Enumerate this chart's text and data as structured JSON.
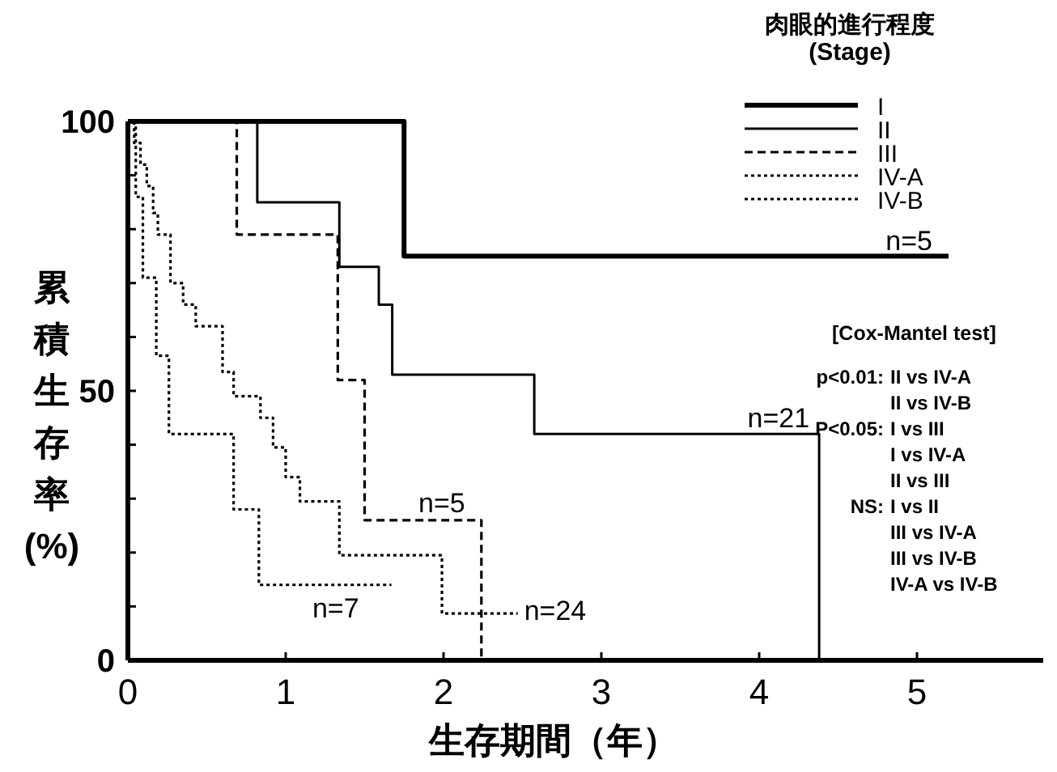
{
  "chart_data": {
    "type": "step",
    "xlabel": "生存期間（年）",
    "ylabel": "累積生存率(%)",
    "legend_title": "肉眼的進行程度\n(Stage)",
    "legend": "top right",
    "xlim": [
      0,
      5.8
    ],
    "ylim": [
      0,
      100
    ],
    "xticks": [
      0,
      1,
      2,
      3,
      4,
      5
    ],
    "yticks": [
      0,
      {
        "value": 10,
        "label": null
      },
      {
        "value": 20,
        "label": null
      },
      {
        "value": 30,
        "label": null
      },
      {
        "value": 40,
        "label": null
      },
      50,
      {
        "value": 60,
        "label": null
      },
      {
        "value": 70,
        "label": null
      },
      {
        "value": 80,
        "label": null
      },
      {
        "value": 90,
        "label": null
      },
      100
    ],
    "series": [
      {
        "name": "I",
        "color": "#000000",
        "line_style": "solid",
        "x": [
          0,
          1.75,
          5.2
        ],
        "values": [
          100,
          75,
          75
        ]
      },
      {
        "name": "II",
        "color": "#000000",
        "line_style": "solid",
        "x": [
          0,
          0.82,
          1.34,
          1.59,
          1.675,
          2.575,
          4.38,
          4.38
        ],
        "values": [
          100,
          85,
          73,
          66,
          53,
          42,
          42,
          0
        ]
      },
      {
        "name": "III",
        "color": "#000000",
        "line_style": "dashed",
        "x": [
          0,
          0.69,
          1.33,
          1.5,
          2.24,
          2.24
        ],
        "values": [
          100,
          79,
          52,
          26,
          26,
          0
        ]
      },
      {
        "name": "IV-A",
        "color": "#000000",
        "line_style": "dotted",
        "x": [
          0,
          0.04,
          0.08,
          0.12,
          0.16,
          0.19,
          0.27,
          0.35,
          0.43,
          0.6,
          0.67,
          0.84,
          0.92,
          1.0,
          1.09,
          1.34,
          1.99,
          2.47
        ],
        "values": [
          100,
          96,
          92,
          88,
          83,
          79,
          70,
          66,
          62,
          53.5,
          49,
          45,
          39.5,
          34,
          29.5,
          19.5,
          8.7,
          8.7
        ]
      },
      {
        "name": "IV-B",
        "color": "#000000",
        "line_style": "dotted",
        "x": [
          0,
          0.05,
          0.095,
          0.18,
          0.26,
          0.67,
          0.83,
          1.67
        ],
        "values": [
          100,
          86,
          71,
          56.5,
          42,
          28,
          14,
          14
        ]
      }
    ],
    "annotations": [
      {
        "text": "n=5",
        "x": 5.2,
        "y": 75
      },
      {
        "text": "n=21",
        "x": 4.38,
        "y": 42
      },
      {
        "text": "n=5",
        "x": 2.24,
        "y": 26
      },
      {
        "text": "n=7",
        "x": 1.67,
        "y": 14
      },
      {
        "text": "n=24",
        "x": 2.47,
        "y": 8.7
      },
      "[Cox-Mantel test]",
      "p<0.01: II vs IV-A",
      "II vs IV-B",
      "P<0.05: I vs III",
      "I vs IV-A",
      "II vs III",
      "NS: I vs II",
      "III vs IV-A",
      "III vs IV-B",
      "IV-A vs IV-B"
    ]
  }
}
